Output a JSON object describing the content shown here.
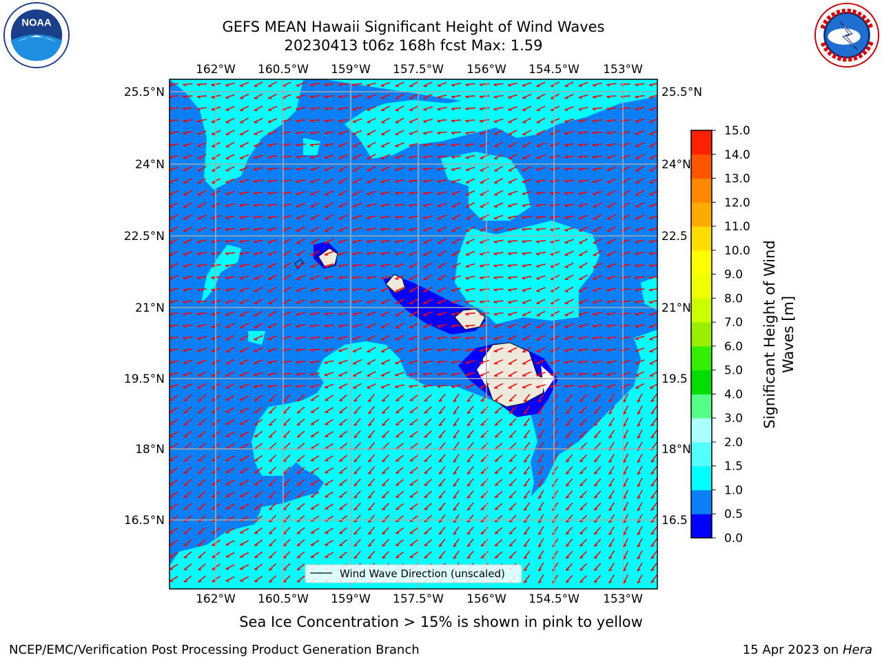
{
  "header": {
    "title_line1": "GEFS MEAN Hawaii Significant Height of Wind Waves",
    "title_line2": "20230413 t06z 168h fcst   Max: 1.59"
  },
  "logos": {
    "noaa_text": "NOAA",
    "noaa_ring_text": "NATIONAL OCEANIC AND ATMOSPHERIC ADMINISTRATION",
    "noaa_bottom_text": "U.S. DEPARTMENT OF COMMERCE",
    "nws_ring_text": "NATIONAL WEATHER SERVICE"
  },
  "map": {
    "lon_labels": [
      "162°W",
      "160.5°W",
      "159°W",
      "157.5°W",
      "156°W",
      "154.5°W",
      "153°W"
    ],
    "lat_labels_left": [
      "25.5°N",
      "24°N",
      "22.5°N",
      "21°N",
      "19.5°N",
      "18°N",
      "16.5°N"
    ],
    "lat_labels_right": [
      "25.5°N",
      "24°N",
      "22.5",
      "21°N",
      "19.5",
      "18°N",
      "16.5"
    ],
    "legend_label": "Wind Wave Direction (unscaled)",
    "arrow_color": "#ff0000",
    "land_color": "#eeeadb",
    "field_colors": {
      "0-0.5": "#0000ff",
      "0.5-1.0": "#0a7ff7",
      "1.0-1.5": "#00ffff"
    }
  },
  "colorbar": {
    "label_line1": "Significant Height of Wind",
    "label_line2": "Waves [m]",
    "ticks": [
      "0.0",
      "0.5",
      "1.0",
      "1.5",
      "2.0",
      "3.0",
      "4.0",
      "5.0",
      "6.0",
      "7.0",
      "8.0",
      "9.0",
      "10.0",
      "11.0",
      "12.0",
      "13.0",
      "14.0",
      "15.0"
    ],
    "colors": [
      "#0000ff",
      "#0a7ff7",
      "#00ffff",
      "#55ffff",
      "#aaffff",
      "#55ff88",
      "#00dd00",
      "#33ee00",
      "#99ee00",
      "#ccff00",
      "#eeff00",
      "#ffff00",
      "#ffdd00",
      "#ffaa00",
      "#ff8800",
      "#ff5500",
      "#ff2200"
    ]
  },
  "note": "Sea Ice Concentration > 15% is shown in pink to yellow",
  "footer": {
    "left": "NCEP/EMC/Verification Post Processing Product Generation Branch",
    "right_prefix": "15 Apr 2023 on ",
    "right_italic": "Hera"
  }
}
